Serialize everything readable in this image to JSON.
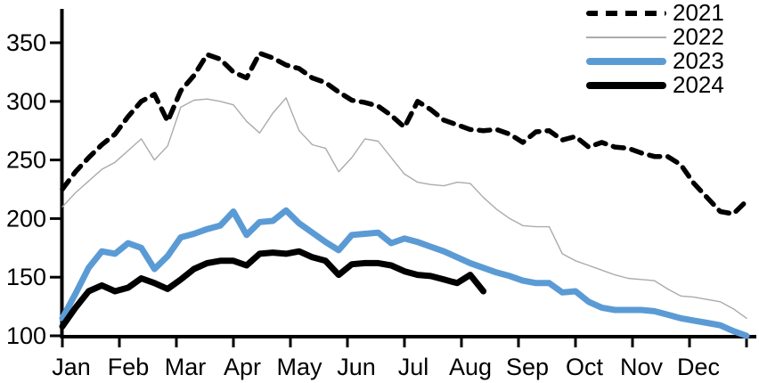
{
  "chart_data": {
    "type": "line",
    "title": "",
    "xlabel": "",
    "ylabel": "",
    "x_axis": {
      "tick_labels": [
        "Jan",
        "Feb",
        "Mar",
        "Apr",
        "May",
        "Jun",
        "Jul",
        "Aug",
        "Sep",
        "Oct",
        "Nov",
        "Dec"
      ],
      "unit": "weekly points across one year"
    },
    "y_axis": {
      "ticks": [
        100,
        150,
        200,
        250,
        300,
        350
      ],
      "ylim": [
        100,
        377
      ]
    },
    "grid": "off",
    "legend_position": "top-right",
    "legend": [
      {
        "label": "2021",
        "style": "dashed",
        "color": "#000000"
      },
      {
        "label": "2022",
        "style": "thin",
        "color": "#ababab"
      },
      {
        "label": "2023",
        "style": "thick",
        "color": "#5b9bd5"
      },
      {
        "label": "2024",
        "style": "thick",
        "color": "#000000"
      }
    ],
    "series": [
      {
        "name": "2021",
        "color": "#000000",
        "line": "dashed",
        "width": 5.5,
        "values": [
          225,
          240,
          252,
          263,
          272,
          287,
          300,
          306,
          283,
          309,
          322,
          340,
          336,
          325,
          320,
          341,
          337,
          331,
          328,
          320,
          316,
          308,
          301,
          299,
          296,
          288,
          278,
          300,
          293,
          284,
          280,
          276,
          275,
          276,
          272,
          265,
          274,
          275,
          267,
          270,
          261,
          265,
          261,
          260,
          256,
          253,
          253,
          246,
          230,
          218,
          206,
          204,
          215
        ]
      },
      {
        "name": "2022",
        "color": "#ababab",
        "line": "solid",
        "width": 1.4,
        "values": [
          210,
          222,
          232,
          242,
          248,
          258,
          268,
          250,
          262,
          295,
          301,
          302,
          300,
          297,
          283,
          273,
          290,
          303,
          275,
          263,
          260,
          240,
          252,
          268,
          266,
          252,
          238,
          231,
          229,
          228,
          231,
          230,
          218,
          208,
          200,
          194,
          193,
          193,
          170,
          164,
          160,
          156,
          152,
          149,
          148,
          147,
          140,
          134,
          133,
          131,
          129,
          123,
          115
        ]
      },
      {
        "name": "2023",
        "color": "#5b9bd5",
        "line": "solid",
        "width": 7,
        "values": [
          115,
          136,
          158,
          172,
          170,
          179,
          175,
          157,
          168,
          184,
          187,
          191,
          194,
          206,
          186,
          197,
          198,
          207,
          196,
          188,
          180,
          173,
          186,
          187,
          188,
          179,
          183,
          180,
          176,
          172,
          167,
          162,
          158,
          154,
          151,
          147,
          145,
          145,
          137,
          138,
          129,
          124,
          122,
          122,
          122,
          121,
          118,
          115,
          113,
          111,
          109,
          104,
          100
        ]
      },
      {
        "name": "2024",
        "color": "#000000",
        "line": "solid",
        "width": 7,
        "values": [
          108,
          124,
          138,
          143,
          138,
          141,
          149,
          145,
          140,
          148,
          157,
          162,
          164,
          164,
          160,
          170,
          171,
          170,
          172,
          167,
          164,
          152,
          161,
          162,
          162,
          160,
          155,
          152,
          151,
          148,
          145,
          152,
          138
        ]
      }
    ]
  }
}
